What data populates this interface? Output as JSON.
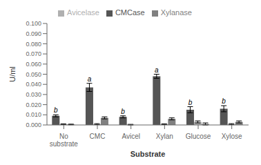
{
  "chart_data": {
    "type": "bar",
    "categories": [
      "No\nsubstrate",
      "CMC",
      "Avicel",
      "Xylan",
      "Glucose",
      "Xylose"
    ],
    "series": [
      {
        "name": "CMCase",
        "color": "#555555",
        "values": [
          0.009,
          0.037,
          0.008,
          0.048,
          0.015,
          0.016
        ],
        "errors": [
          0.001,
          0.004,
          0.001,
          0.002,
          0.003,
          0.003
        ]
      },
      {
        "name": "Avicelase",
        "color": "#b0b0b0",
        "values": [
          0.0008,
          0.0008,
          0.0003,
          0.0008,
          0.003,
          0.0008
        ],
        "errors": [
          0.0003,
          0.0005,
          0.0003,
          0.0003,
          0.001,
          0.0005
        ]
      },
      {
        "name": "Xylanase",
        "color": "#808080",
        "values": [
          0.0005,
          0.007,
          0.0,
          0.006,
          0.001,
          0.003
        ],
        "errors": [
          0.0003,
          0.001,
          0.0003,
          0.001,
          0.001,
          0.001
        ]
      }
    ],
    "annotations": [
      "b",
      "a",
      "b",
      "a",
      "b",
      "b"
    ],
    "xlabel": "Substrate",
    "ylabel": "U/ml",
    "ylim": [
      0,
      0.1
    ],
    "yticks": [
      {
        "value": 0,
        "label": "0.000"
      },
      {
        "value": 0.01,
        "label": "0.010"
      },
      {
        "value": 0.02,
        "label": "0.020"
      },
      {
        "value": 0.03,
        "label": "0.030"
      },
      {
        "value": 0.04,
        "label": "0.040"
      },
      {
        "value": 0.05,
        "label": "0.050"
      },
      {
        "value": 0.06,
        "label": "0.060"
      },
      {
        "value": 0.07,
        "label": "0.070"
      },
      {
        "value": 0.08,
        "label": "0.080"
      },
      {
        "value": 0.09,
        "label": "0.090"
      },
      {
        "value": 0.1,
        "label": "0.100"
      }
    ],
    "legend": "top",
    "grid": false
  }
}
